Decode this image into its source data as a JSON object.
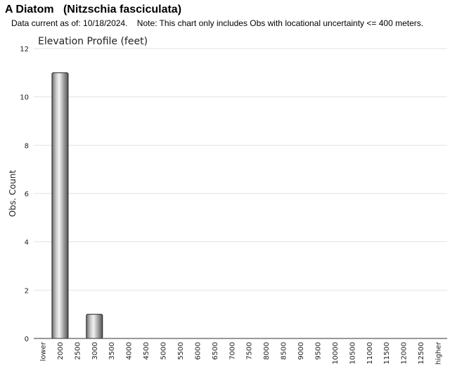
{
  "header": {
    "title": "A Diatom   (Nitzschia fasciculata)",
    "note": "Data current as of: 10/18/2024.    Note: This chart only includes Obs with locational uncertainty <= 400 meters."
  },
  "chart_data": {
    "type": "bar",
    "title": "Elevation Profile (feet)",
    "xlabel": "",
    "ylabel": "Obs. Count",
    "ylim": [
      0,
      12
    ],
    "yticks": [
      0,
      2,
      4,
      6,
      8,
      10,
      12
    ],
    "grid": true,
    "categories": [
      "lower",
      "2000",
      "2500",
      "3000",
      "3500",
      "4000",
      "4500",
      "5000",
      "5500",
      "6000",
      "6500",
      "7000",
      "7500",
      "8000",
      "8500",
      "9000",
      "9500",
      "10000",
      "10500",
      "11000",
      "11500",
      "12000",
      "12500",
      "higher"
    ],
    "values": [
      0,
      11,
      0,
      1,
      0,
      0,
      0,
      0,
      0,
      0,
      0,
      0,
      0,
      0,
      0,
      0,
      0,
      0,
      0,
      0,
      0,
      0,
      0,
      0
    ]
  }
}
